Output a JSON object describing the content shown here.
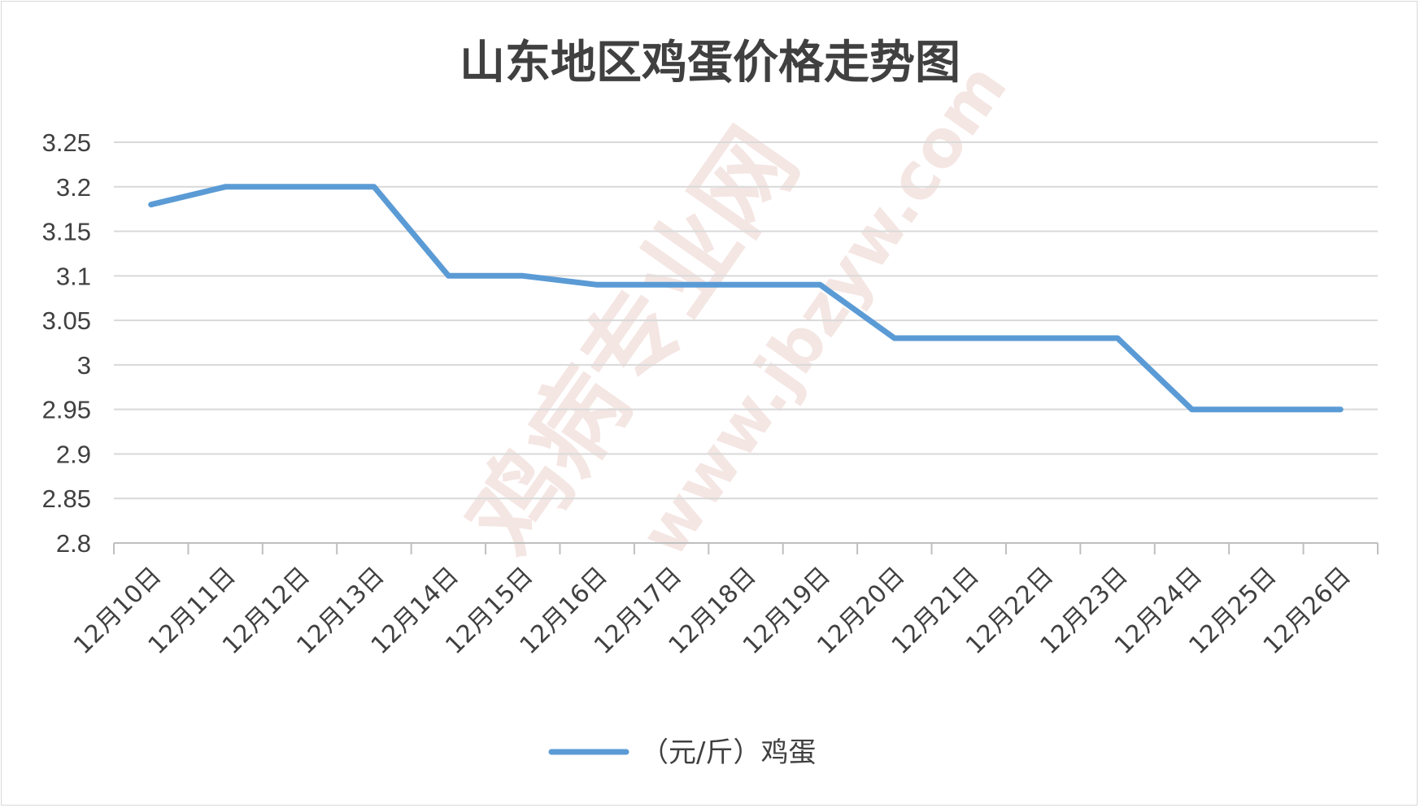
{
  "chart_data": {
    "type": "line",
    "title": "山东地区鸡蛋价格走势图",
    "categories": [
      "12月10日",
      "12月11日",
      "12月12日",
      "12月13日",
      "12月14日",
      "12月15日",
      "12月16日",
      "12月17日",
      "12月18日",
      "12月19日",
      "12月20日",
      "12月21日",
      "12月22日",
      "12月23日",
      "12月24日",
      "12月25日",
      "12月26日"
    ],
    "series": [
      {
        "name": "（元/斤）鸡蛋",
        "color": "#5b9bd5",
        "values": [
          3.18,
          3.2,
          3.2,
          3.2,
          3.1,
          3.1,
          3.09,
          3.09,
          3.09,
          3.09,
          3.03,
          3.03,
          3.03,
          3.03,
          2.95,
          2.95,
          2.95
        ]
      }
    ],
    "ylim": [
      2.8,
      3.25
    ],
    "yticks": [
      "3.25",
      "3.2",
      "3.15",
      "3.1",
      "3.05",
      "3",
      "2.95",
      "2.9",
      "2.85",
      "2.8"
    ],
    "ytick_values": [
      3.25,
      3.2,
      3.15,
      3.1,
      3.05,
      3.0,
      2.95,
      2.9,
      2.85,
      2.8
    ],
    "grid": true,
    "legend_position": "bottom",
    "xlabel": "",
    "ylabel": ""
  },
  "watermark": {
    "main": "鸡病专业网",
    "url": "www.jbzyw.com",
    "color": "#e8c8c3"
  }
}
